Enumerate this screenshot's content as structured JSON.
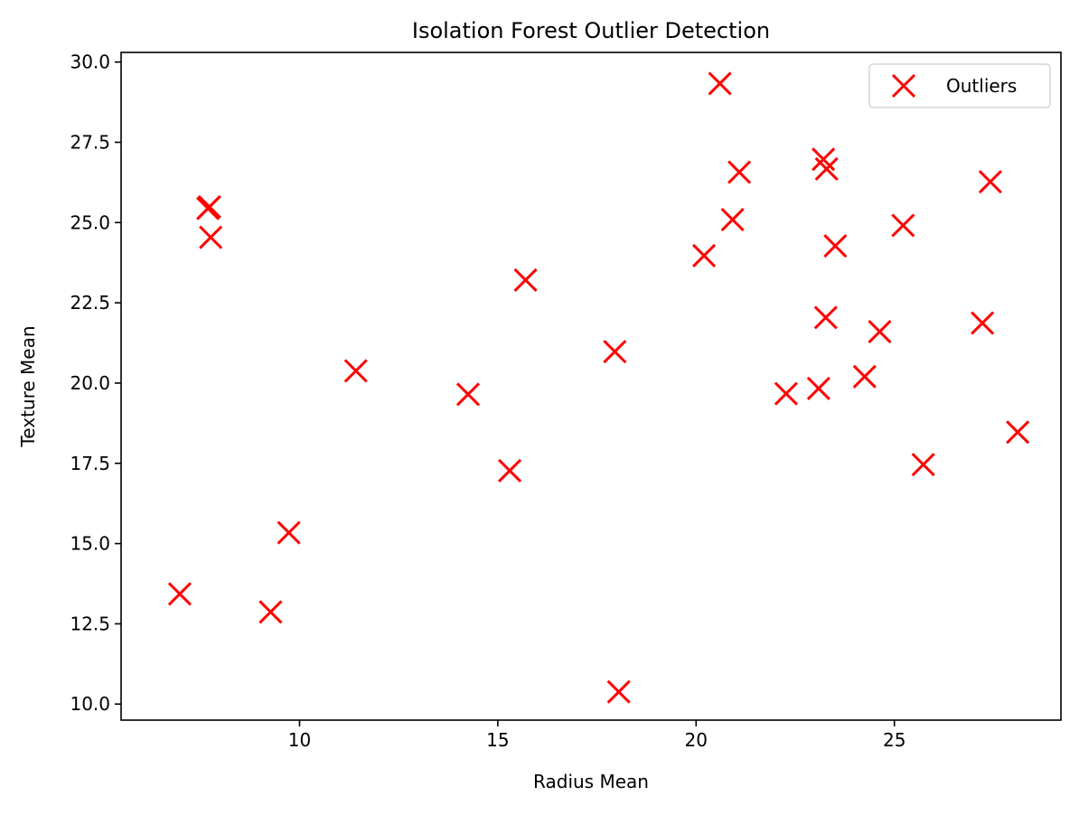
{
  "chart_data": {
    "type": "scatter",
    "title": "Isolation Forest Outlier Detection",
    "xlabel": "Radius Mean",
    "ylabel": "Texture Mean",
    "xlim": [
      5.5,
      29.2
    ],
    "ylim": [
      9.5,
      30.3
    ],
    "xticks": [
      10,
      15,
      20,
      25
    ],
    "yticks": [
      10.0,
      12.5,
      15.0,
      17.5,
      20.0,
      22.5,
      25.0,
      27.5,
      30.0
    ],
    "xtick_labels": [
      "10",
      "15",
      "20",
      "25"
    ],
    "ytick_labels": [
      "10.0",
      "12.5",
      "15.0",
      "17.5",
      "20.0",
      "22.5",
      "25.0",
      "27.5",
      "30.0"
    ],
    "grid": false,
    "legend_position": "upper-right",
    "marker": "x",
    "series": [
      {
        "name": "Outliers",
        "color": "#ff0000",
        "points": [
          {
            "x": 6.98,
            "y": 13.43
          },
          {
            "x": 7.69,
            "y": 25.44
          },
          {
            "x": 7.73,
            "y": 25.49
          },
          {
            "x": 7.76,
            "y": 24.54
          },
          {
            "x": 9.27,
            "y": 12.87
          },
          {
            "x": 9.73,
            "y": 15.34
          },
          {
            "x": 11.42,
            "y": 20.38
          },
          {
            "x": 14.25,
            "y": 19.65
          },
          {
            "x": 15.3,
            "y": 17.27
          },
          {
            "x": 15.7,
            "y": 23.21
          },
          {
            "x": 17.95,
            "y": 20.98
          },
          {
            "x": 18.05,
            "y": 10.38
          },
          {
            "x": 20.2,
            "y": 23.97
          },
          {
            "x": 20.6,
            "y": 29.33
          },
          {
            "x": 20.92,
            "y": 25.09
          },
          {
            "x": 21.09,
            "y": 26.57
          },
          {
            "x": 22.27,
            "y": 19.67
          },
          {
            "x": 23.09,
            "y": 19.83
          },
          {
            "x": 23.21,
            "y": 26.97
          },
          {
            "x": 23.27,
            "y": 22.04
          },
          {
            "x": 23.29,
            "y": 26.67
          },
          {
            "x": 23.51,
            "y": 24.27
          },
          {
            "x": 24.25,
            "y": 20.2
          },
          {
            "x": 24.63,
            "y": 21.6
          },
          {
            "x": 25.22,
            "y": 24.91
          },
          {
            "x": 25.73,
            "y": 17.46
          },
          {
            "x": 27.22,
            "y": 21.87
          },
          {
            "x": 27.42,
            "y": 26.27
          },
          {
            "x": 28.11,
            "y": 18.47
          }
        ]
      }
    ]
  }
}
